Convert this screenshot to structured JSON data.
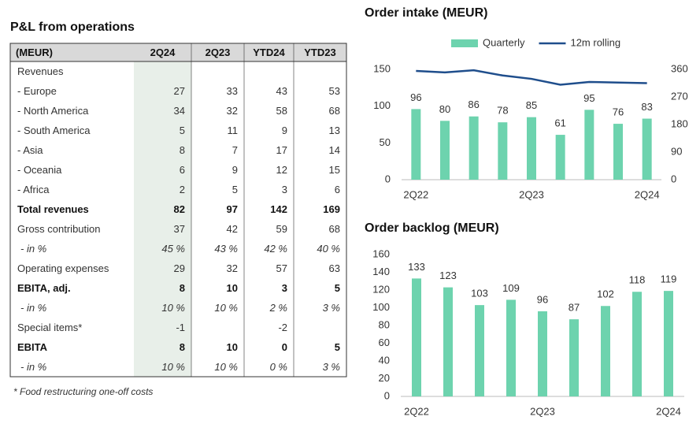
{
  "table": {
    "title": "P&L from operations",
    "header": [
      "(MEUR)",
      "2Q24",
      "2Q23",
      "YTD24",
      "YTD23"
    ],
    "rows": [
      [
        "Revenues",
        null,
        null,
        null,
        null
      ],
      [
        "- Europe",
        27,
        33,
        43,
        53
      ],
      [
        "- North America",
        34,
        32,
        58,
        68
      ],
      [
        "- South America",
        5,
        11,
        9,
        13
      ],
      [
        "- Asia",
        8,
        7,
        17,
        14
      ],
      [
        "- Oceania",
        6,
        9,
        12,
        15
      ],
      [
        "- Africa",
        2,
        5,
        3,
        6
      ],
      [
        "Total revenues",
        82,
        97,
        142,
        169
      ],
      [
        "Gross contribution",
        37,
        42,
        59,
        68
      ],
      [
        "- in %",
        "45 %",
        "43 %",
        "42 %",
        "40 %"
      ],
      [
        "Operating expenses",
        29,
        32,
        57,
        63
      ],
      [
        "EBITA, adj.",
        8,
        10,
        3,
        5
      ],
      [
        "- in %",
        "10 %",
        "10 %",
        "2 %",
        "3 %"
      ],
      [
        "Special items*",
        -1,
        null,
        -2,
        null
      ],
      [
        "EBITA",
        8,
        10,
        0,
        5
      ],
      [
        "- in %",
        "10 %",
        "10 %",
        "0 %",
        "3 %"
      ]
    ],
    "footnote": "* Food restructuring one-off costs"
  },
  "chart_data": [
    {
      "type": "bar",
      "title": "Order intake (MEUR)",
      "categories": [
        "2Q22",
        null,
        null,
        null,
        "2Q23",
        null,
        null,
        null,
        "2Q24"
      ],
      "series": [
        {
          "name": "Quarterly",
          "color": "#6dd3ae",
          "values": [
            96,
            80,
            86,
            78,
            85,
            61,
            95,
            76,
            83
          ]
        },
        {
          "name": "12m rolling",
          "color": "#1f4e8c",
          "type": "line",
          "axis": "y2",
          "values": [
            355,
            350,
            357,
            340,
            329,
            310,
            319,
            317,
            315
          ]
        }
      ],
      "ylim": [
        0,
        150
      ],
      "yticks": [
        0,
        50,
        100,
        150
      ],
      "y2lim": [
        0,
        360
      ],
      "y2ticks": [
        0,
        90,
        180,
        270,
        360
      ],
      "legend": "top"
    },
    {
      "type": "bar",
      "title": "Order backlog (MEUR)",
      "categories": [
        "2Q22",
        null,
        null,
        null,
        "2Q23",
        null,
        null,
        null,
        "2Q24"
      ],
      "series": [
        {
          "name": "Order backlog",
          "color": "#6dd3ae",
          "values": [
            133,
            123,
            103,
            109,
            96,
            87,
            102,
            118,
            119
          ]
        }
      ],
      "ylim": [
        0,
        160
      ],
      "yticks": [
        0,
        20,
        40,
        60,
        80,
        100,
        120,
        140,
        160
      ]
    }
  ]
}
